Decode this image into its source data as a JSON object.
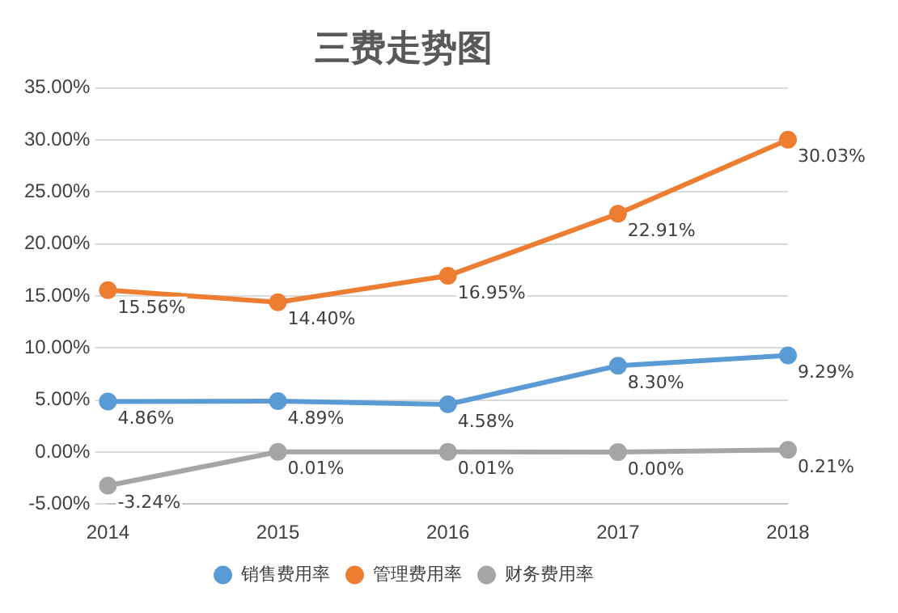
{
  "chart_data": {
    "type": "line",
    "title": "三费走势图",
    "categories": [
      "2014",
      "2015",
      "2016",
      "2017",
      "2018"
    ],
    "series": [
      {
        "name": "销售费用率",
        "color": "#5b9bd5",
        "values": [
          4.86,
          4.89,
          4.58,
          8.3,
          9.29
        ],
        "value_labels": [
          "4.86%",
          "4.89%",
          "4.58%",
          "8.30%",
          "9.29%"
        ]
      },
      {
        "name": "管理费用率",
        "color": "#ed7d31",
        "values": [
          15.56,
          14.4,
          16.95,
          22.91,
          30.03
        ],
        "value_labels": [
          "15.56%",
          "14.40%",
          "16.95%",
          "22.91%",
          "30.03%"
        ]
      },
      {
        "name": "财务费用率",
        "color": "#a5a5a5",
        "values": [
          -3.24,
          0.01,
          0.01,
          0.0,
          0.21
        ],
        "value_labels": [
          "-3.24%",
          "0.01%",
          "0.01%",
          "0.00%",
          "0.21%"
        ]
      }
    ],
    "ylim": [
      -5,
      35
    ],
    "yticks": [
      {
        "value": -5,
        "label": "-5.00%"
      },
      {
        "value": 0,
        "label": "0.00%"
      },
      {
        "value": 5,
        "label": "5.00%"
      },
      {
        "value": 10,
        "label": "10.00%"
      },
      {
        "value": 15,
        "label": "15.00%"
      },
      {
        "value": 20,
        "label": "20.00%"
      },
      {
        "value": 25,
        "label": "25.00%"
      },
      {
        "value": 30,
        "label": "30.00%"
      },
      {
        "value": 35,
        "label": "35.00%"
      }
    ],
    "grid": "y",
    "legend": "bottom",
    "marker": "circle",
    "line_style": "solid"
  }
}
